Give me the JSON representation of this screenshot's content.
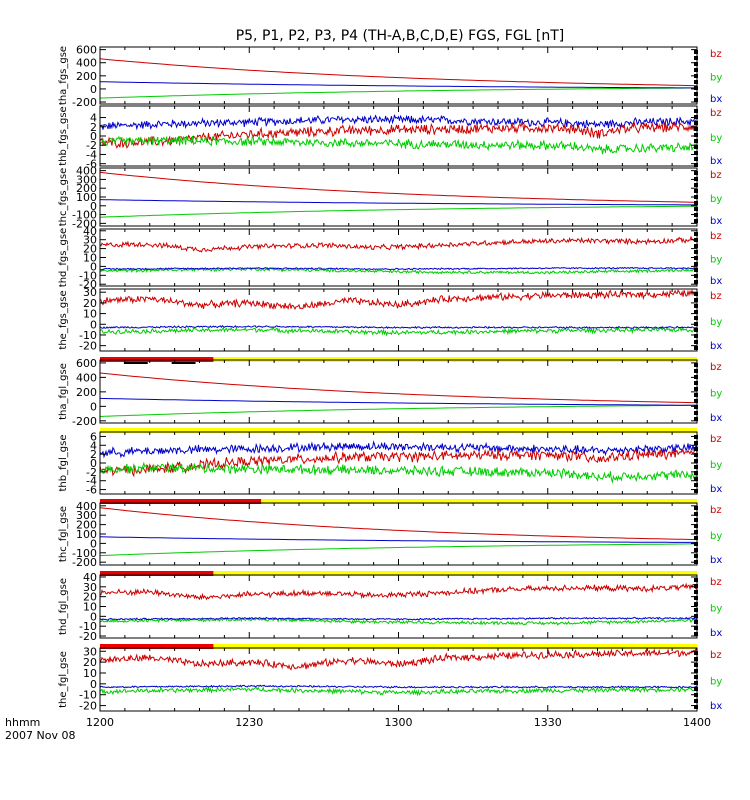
{
  "title": "P5, P1, P2, P3, P4 (TH-A,B,C,D,E) FGS, FGL [nT]",
  "time_axis": {
    "label_line1": "hhmm",
    "label_line2": "2007 Nov 08",
    "ticks": [
      "1200",
      "1230",
      "1300",
      "1330",
      "1400"
    ],
    "range_minutes": [
      0,
      120
    ]
  },
  "legend_colors": {
    "bz": "#cc0000",
    "by": "#00cc00",
    "bx": "#0000cc"
  },
  "chart_data": [
    {
      "type": "line",
      "ylabel": "tha_fgs_gse",
      "yticks": [
        600,
        400,
        200,
        0,
        -200
      ],
      "ylim": [
        -230,
        640
      ],
      "legend": [
        "bz",
        "by",
        "bx"
      ],
      "series": [
        {
          "name": "bz",
          "kind": "exp",
          "x": [
            0,
            120
          ],
          "values": [
            460,
            50
          ],
          "k": 1.7
        },
        {
          "name": "by",
          "kind": "exp",
          "x": [
            0,
            120
          ],
          "values": [
            -140,
            15
          ],
          "k": 1.6
        },
        {
          "name": "bx",
          "kind": "exp",
          "x": [
            0,
            120
          ],
          "values": [
            110,
            15
          ],
          "k": 1.4
        }
      ],
      "status_bar": null
    },
    {
      "type": "line",
      "ylabel": "thb_fgs_gse",
      "yticks": [
        4,
        2,
        0,
        -2,
        -4,
        -6
      ],
      "ylim": [
        -6.5,
        6.5
      ],
      "legend": [
        "bz",
        "by",
        "bx"
      ],
      "series": [
        {
          "name": "bx",
          "kind": "noisy",
          "x": [
            0,
            3,
            12,
            30,
            50,
            70,
            85,
            95,
            100,
            105,
            110,
            120
          ],
          "values": [
            2,
            2.2,
            2.6,
            3,
            3.6,
            3.4,
            3,
            2.8,
            2.5,
            2.8,
            3,
            3.2
          ],
          "noise": 1.1
        },
        {
          "name": "bz",
          "kind": "noisy",
          "x": [
            0,
            3,
            12,
            30,
            50,
            70,
            85,
            95,
            100,
            105,
            110,
            120
          ],
          "values": [
            -1.3,
            -1.5,
            -1.2,
            0.4,
            1.2,
            1.5,
            1.8,
            1.6,
            0.5,
            1.5,
            1.8,
            2.1
          ],
          "noise": 1.3
        },
        {
          "name": "by",
          "kind": "noisy",
          "x": [
            0,
            3,
            12,
            30,
            50,
            70,
            85,
            95,
            100,
            105,
            110,
            120
          ],
          "values": [
            -1.4,
            -1.2,
            -1,
            -1.2,
            -1.5,
            -1.8,
            -2,
            -2.2,
            -3,
            -2.8,
            -2.6,
            -2.5
          ],
          "noise": 1.2
        }
      ],
      "status_bar": null
    },
    {
      "type": "line",
      "ylabel": "thc_fgs_gse",
      "yticks": [
        400,
        300,
        200,
        100,
        0,
        -100,
        -200
      ],
      "ylim": [
        -230,
        430
      ],
      "legend": [
        "bz",
        "by",
        "bx"
      ],
      "series": [
        {
          "name": "bz",
          "kind": "exp",
          "x": [
            0,
            120
          ],
          "values": [
            380,
            40
          ],
          "k": 1.8
        },
        {
          "name": "by",
          "kind": "exp",
          "x": [
            0,
            120
          ],
          "values": [
            -130,
            -5
          ],
          "k": 1.6
        },
        {
          "name": "bx",
          "kind": "exp",
          "x": [
            0,
            120
          ],
          "values": [
            70,
            10
          ],
          "k": 1.5
        }
      ],
      "status_bar": null
    },
    {
      "type": "line",
      "ylabel": "thd_fgs_gse",
      "yticks": [
        40,
        30,
        20,
        10,
        0,
        -10,
        -20
      ],
      "ylim": [
        -22,
        42
      ],
      "legend": [
        "bz",
        "by",
        "bx"
      ],
      "series": [
        {
          "name": "bz",
          "kind": "noisy",
          "x": [
            0,
            10,
            20,
            30,
            45,
            55,
            65,
            80,
            95,
            110,
            120
          ],
          "values": [
            24,
            25,
            19,
            22,
            24,
            21,
            23,
            27,
            29,
            28,
            30
          ],
          "noise": 3.5
        },
        {
          "name": "by",
          "kind": "noisy",
          "x": [
            0,
            30,
            60,
            90,
            120
          ],
          "values": [
            -5,
            -3,
            -6,
            -7,
            -4
          ],
          "noise": 2
        },
        {
          "name": "bx",
          "kind": "noisy",
          "x": [
            0,
            30,
            60,
            90,
            120
          ],
          "values": [
            -3,
            -2,
            -3,
            -2,
            -2
          ],
          "noise": 1
        }
      ],
      "status_bar": null
    },
    {
      "type": "line",
      "ylabel": "the_fgs_gse",
      "yticks": [
        30,
        20,
        10,
        0,
        -10,
        -20
      ],
      "ylim": [
        -25,
        33
      ],
      "legend": [
        "bz",
        "by",
        "bx"
      ],
      "series": [
        {
          "name": "bz",
          "kind": "noisy",
          "x": [
            0,
            10,
            20,
            30,
            40,
            50,
            60,
            70,
            90,
            110,
            120
          ],
          "values": [
            22,
            24,
            18,
            20,
            16,
            22,
            18,
            24,
            27,
            28,
            29
          ],
          "noise": 4
        },
        {
          "name": "by",
          "kind": "noisy",
          "x": [
            0,
            30,
            60,
            90,
            120
          ],
          "values": [
            -7,
            -5,
            -8,
            -6,
            -5
          ],
          "noise": 2.5
        },
        {
          "name": "bx",
          "kind": "noisy",
          "x": [
            0,
            30,
            60,
            90,
            120
          ],
          "values": [
            -3,
            -2,
            -3,
            -3,
            -3
          ],
          "noise": 1
        }
      ],
      "status_bar": {
        "red_end": 0.19,
        "black_segments": [
          [
            0.04,
            0.08
          ],
          [
            0.12,
            0.16
          ]
        ]
      }
    },
    {
      "type": "line",
      "ylabel": "tha_fgl_gse",
      "yticks": [
        600,
        400,
        200,
        0,
        -200
      ],
      "ylim": [
        -230,
        640
      ],
      "legend": [
        "bz",
        "by",
        "bx"
      ],
      "series": [
        {
          "name": "bz",
          "kind": "exp",
          "x": [
            0,
            120
          ],
          "values": [
            460,
            50
          ],
          "k": 1.7
        },
        {
          "name": "by",
          "kind": "exp",
          "x": [
            0,
            120
          ],
          "values": [
            -140,
            15
          ],
          "k": 1.6
        },
        {
          "name": "bx",
          "kind": "exp",
          "x": [
            0,
            120
          ],
          "values": [
            110,
            15
          ],
          "k": 1.4
        }
      ],
      "status_bar": {
        "red_end": 0.0,
        "black_segments": []
      }
    },
    {
      "type": "line",
      "ylabel": "thb_fgl_gse",
      "yticks": [
        6,
        4,
        2,
        0,
        -2,
        -4,
        -6
      ],
      "ylim": [
        -7,
        7
      ],
      "legend": [
        "bz",
        "by",
        "bx"
      ],
      "series": [
        {
          "name": "bx",
          "kind": "noisy",
          "x": [
            0,
            3,
            12,
            30,
            50,
            70,
            85,
            95,
            100,
            105,
            110,
            120
          ],
          "values": [
            2.2,
            2.4,
            2.8,
            3.2,
            3.8,
            3.6,
            3.2,
            3,
            2.7,
            3,
            3.2,
            3.4
          ],
          "noise": 1.2
        },
        {
          "name": "bz",
          "kind": "noisy",
          "x": [
            0,
            3,
            12,
            30,
            50,
            70,
            85,
            95,
            100,
            105,
            110,
            120
          ],
          "values": [
            -1.5,
            -1.7,
            -1.3,
            0.4,
            1.3,
            1.6,
            1.9,
            1.7,
            0.6,
            1.6,
            1.9,
            2.2
          ],
          "noise": 1.4
        },
        {
          "name": "by",
          "kind": "noisy",
          "x": [
            0,
            3,
            12,
            30,
            50,
            70,
            85,
            95,
            100,
            105,
            110,
            120
          ],
          "values": [
            -1.5,
            -1.3,
            -1.1,
            -1.3,
            -1.6,
            -1.9,
            -2.1,
            -2.3,
            -3.2,
            -3,
            -2.8,
            -2.7
          ],
          "noise": 1.3
        }
      ],
      "status_bar": {
        "red_end": 0.27,
        "black_segments": []
      }
    },
    {
      "type": "line",
      "ylabel": "thc_fgl_gse",
      "yticks": [
        400,
        300,
        200,
        100,
        0,
        -100,
        -200
      ],
      "ylim": [
        -230,
        430
      ],
      "legend": [
        "bz",
        "by",
        "bx"
      ],
      "series": [
        {
          "name": "bz",
          "kind": "exp",
          "x": [
            0,
            120
          ],
          "values": [
            380,
            40
          ],
          "k": 1.8
        },
        {
          "name": "by",
          "kind": "exp",
          "x": [
            0,
            120
          ],
          "values": [
            -130,
            -5
          ],
          "k": 1.6
        },
        {
          "name": "bx",
          "kind": "exp",
          "x": [
            0,
            120
          ],
          "values": [
            70,
            10
          ],
          "k": 1.5
        }
      ],
      "status_bar": {
        "red_end": 0.19,
        "black_segments": []
      }
    },
    {
      "type": "line",
      "ylabel": "thd_fgl_gse",
      "yticks": [
        40,
        30,
        20,
        10,
        0,
        -10,
        -20
      ],
      "ylim": [
        -22,
        42
      ],
      "legend": [
        "bz",
        "by",
        "bx"
      ],
      "series": [
        {
          "name": "bz",
          "kind": "noisy",
          "x": [
            0,
            10,
            20,
            30,
            45,
            55,
            65,
            80,
            95,
            110,
            120
          ],
          "values": [
            24,
            25,
            19,
            22,
            24,
            21,
            23,
            27,
            29,
            28,
            30
          ],
          "noise": 3.5
        },
        {
          "name": "by",
          "kind": "noisy",
          "x": [
            0,
            30,
            60,
            90,
            120
          ],
          "values": [
            -5,
            -3,
            -6,
            -7,
            -4
          ],
          "noise": 2
        },
        {
          "name": "bx",
          "kind": "noisy",
          "x": [
            0,
            30,
            60,
            90,
            120
          ],
          "values": [
            -3,
            -2,
            -3,
            -2,
            -2
          ],
          "noise": 1
        }
      ],
      "status_bar": {
        "red_end": 0.19,
        "black_segments": []
      }
    },
    {
      "type": "line",
      "ylabel": "the_fgl_gse",
      "yticks": [
        30,
        20,
        10,
        0,
        -10,
        -20
      ],
      "ylim": [
        -25,
        33
      ],
      "legend": [
        "bz",
        "by",
        "bx"
      ],
      "series": [
        {
          "name": "bz",
          "kind": "noisy",
          "x": [
            0,
            10,
            20,
            30,
            40,
            50,
            60,
            70,
            90,
            110,
            120
          ],
          "values": [
            22,
            24,
            18,
            20,
            16,
            22,
            18,
            24,
            27,
            28,
            29
          ],
          "noise": 4
        },
        {
          "name": "by",
          "kind": "noisy",
          "x": [
            0,
            30,
            60,
            90,
            120
          ],
          "values": [
            -7,
            -5,
            -8,
            -6,
            -5
          ],
          "noise": 2.5
        },
        {
          "name": "bx",
          "kind": "noisy",
          "x": [
            0,
            30,
            60,
            90,
            120
          ],
          "values": [
            -3,
            -2,
            -3,
            -3,
            -3
          ],
          "noise": 1
        }
      ],
      "status_bar": null
    }
  ]
}
